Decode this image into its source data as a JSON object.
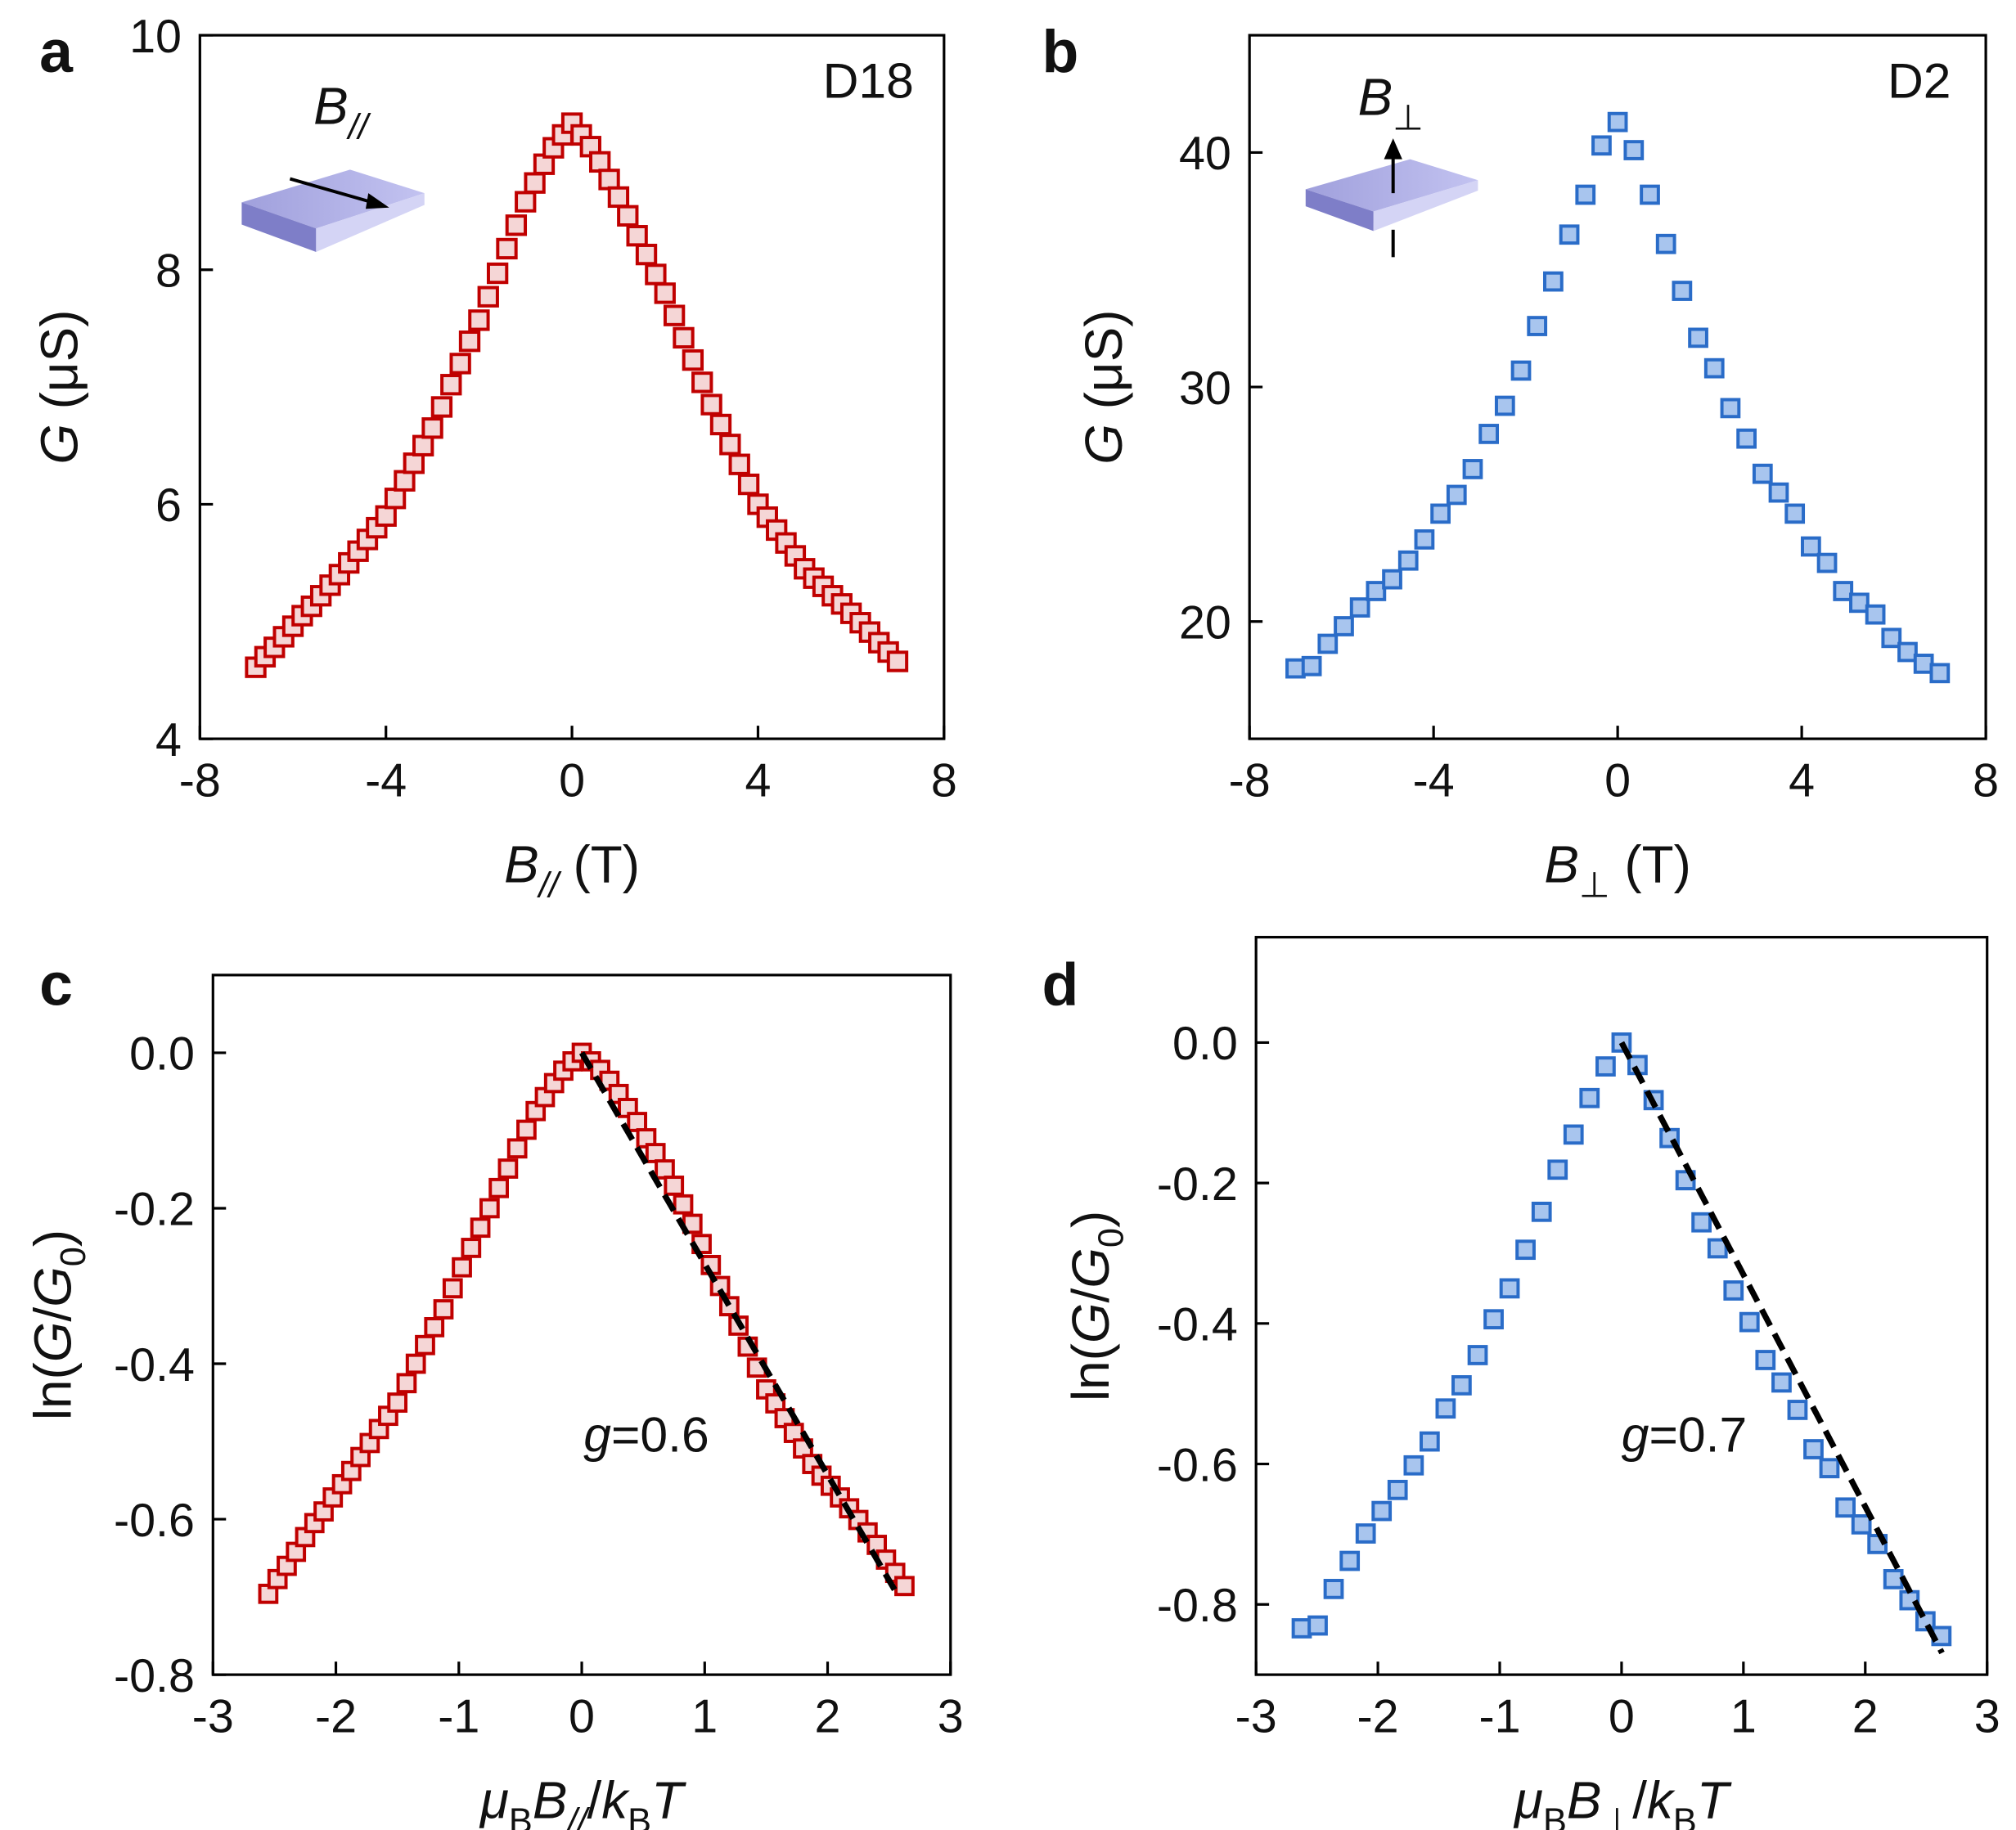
{
  "chart_data": [
    {
      "type": "scatter",
      "panel": "a",
      "annotation": "D18",
      "inset_label": [
        {
          "text": "B",
          "italic": true
        },
        {
          "text": "//",
          "italic": true,
          "sub": true
        }
      ],
      "xlabel": [
        {
          "text": "B",
          "italic": true
        },
        {
          "text": "//",
          "italic": true,
          "sub": true
        },
        {
          "text": " (T)"
        }
      ],
      "ylabel": [
        {
          "text": "G",
          "italic": true
        },
        {
          "text": " (μS)"
        }
      ],
      "xlim": [
        -8,
        8
      ],
      "xticks": [
        -8,
        -4,
        0,
        4,
        8
      ],
      "ylim": [
        4,
        10
      ],
      "yticks": [
        4,
        6,
        8,
        10
      ],
      "color": "#c00000",
      "fill": "#f5d6d6",
      "x": [
        -6.8,
        -6.6,
        -6.4,
        -6.2,
        -6.0,
        -5.8,
        -5.6,
        -5.4,
        -5.2,
        -5.0,
        -4.8,
        -4.6,
        -4.4,
        -4.2,
        -4.0,
        -3.8,
        -3.6,
        -3.4,
        -3.2,
        -3.0,
        -2.8,
        -2.6,
        -2.4,
        -2.2,
        -2.0,
        -1.8,
        -1.6,
        -1.4,
        -1.2,
        -1.0,
        -0.8,
        -0.6,
        -0.4,
        -0.2,
        0,
        0.2,
        0.4,
        0.6,
        0.8,
        1.0,
        1.2,
        1.4,
        1.6,
        1.8,
        2.0,
        2.2,
        2.4,
        2.6,
        2.8,
        3.0,
        3.2,
        3.4,
        3.6,
        3.8,
        4.0,
        4.2,
        4.4,
        4.6,
        4.8,
        5.0,
        5.2,
        5.4,
        5.6,
        5.8,
        6.0,
        6.2,
        6.4,
        6.6,
        6.8,
        7.0
      ],
      "values": [
        4.61,
        4.7,
        4.78,
        4.87,
        4.96,
        5.05,
        5.13,
        5.22,
        5.31,
        5.4,
        5.5,
        5.6,
        5.7,
        5.8,
        5.9,
        6.05,
        6.2,
        6.35,
        6.5,
        6.65,
        6.83,
        7.02,
        7.2,
        7.39,
        7.57,
        7.77,
        7.97,
        8.18,
        8.38,
        8.58,
        8.74,
        8.9,
        9.04,
        9.15,
        9.25,
        9.15,
        9.05,
        8.92,
        8.77,
        8.62,
        8.46,
        8.29,
        8.13,
        7.96,
        7.8,
        7.61,
        7.42,
        7.23,
        7.04,
        6.85,
        6.68,
        6.51,
        6.34,
        6.17,
        6.0,
        5.89,
        5.78,
        5.67,
        5.56,
        5.45,
        5.37,
        5.3,
        5.22,
        5.15,
        5.07,
        4.99,
        4.91,
        4.82,
        4.74,
        4.66
      ]
    },
    {
      "type": "scatter",
      "panel": "b",
      "annotation": "D2",
      "inset_label": [
        {
          "text": "B",
          "italic": true
        },
        {
          "text": "⊥",
          "sub": true
        }
      ],
      "xlabel": [
        {
          "text": "B",
          "italic": true
        },
        {
          "text": "⊥",
          "sub": true
        },
        {
          "text": " (T)"
        }
      ],
      "ylabel": [
        {
          "text": "G",
          "italic": true
        },
        {
          "text": " (μS)"
        }
      ],
      "xlim": [
        -8,
        8
      ],
      "xticks": [
        -8,
        -4,
        0,
        4,
        8
      ],
      "ylim": [
        15,
        45
      ],
      "yticks": [
        20,
        30,
        40
      ],
      "color": "#2a6cc8",
      "fill": "#a8c5ee",
      "x": [
        -7,
        -6.65,
        -6.3,
        -5.95,
        -5.6,
        -5.25,
        -4.9,
        -4.55,
        -4.2,
        -3.85,
        -3.5,
        -3.15,
        -2.8,
        -2.45,
        -2.1,
        -1.75,
        -1.4,
        -1.05,
        -0.7,
        -0.35,
        0,
        0.35,
        0.7,
        1.05,
        1.4,
        1.75,
        2.1,
        2.45,
        2.8,
        3.15,
        3.5,
        3.85,
        4.2,
        4.55,
        4.9,
        5.25,
        5.6,
        5.95,
        6.3,
        6.65,
        7
      ],
      "values": [
        18.0,
        18.1,
        19.05,
        19.8,
        20.6,
        21.3,
        21.8,
        22.6,
        23.5,
        24.6,
        25.4,
        26.5,
        28.0,
        29.2,
        30.7,
        32.6,
        34.5,
        36.5,
        38.2,
        40.3,
        41.3,
        40.1,
        38.2,
        36.1,
        34.1,
        32.1,
        30.8,
        29.1,
        27.8,
        26.3,
        25.5,
        24.6,
        23.2,
        22.5,
        21.3,
        20.8,
        20.3,
        19.3,
        18.7,
        18.2,
        17.8
      ]
    },
    {
      "type": "scatter",
      "panel": "c",
      "annotation": [
        {
          "text": "g",
          "italic": true
        },
        {
          "text": "=0.6"
        }
      ],
      "xlabel": [
        {
          "text": "μ",
          "italic": true
        },
        {
          "text": "B",
          "sub": true
        },
        {
          "text": "B",
          "italic": true
        },
        {
          "text": "//",
          "italic": true,
          "sub": true
        },
        {
          "text": "/"
        },
        {
          "text": "k",
          "italic": true
        },
        {
          "text": "B",
          "sub": true
        },
        {
          "text": "T",
          "italic": true
        }
      ],
      "ylabel": [
        {
          "text": "ln("
        },
        {
          "text": "G",
          "italic": true
        },
        {
          "text": "/"
        },
        {
          "text": "G",
          "italic": true
        },
        {
          "text": "0",
          "sub": true
        },
        {
          "text": ")"
        }
      ],
      "xlim": [
        -3,
        3
      ],
      "xticks": [
        -3,
        -2,
        -1,
        0,
        1,
        2,
        3
      ],
      "ylim": [
        -0.8,
        0.1
      ],
      "yticks": [
        -0.8,
        -0.6,
        -0.4,
        -0.2,
        {
          "value": 0,
          "label": "0.0"
        }
      ],
      "color": "#c00000",
      "fill": "#f5d6d6",
      "x": [
        -2.55,
        -2.475,
        -2.4,
        -2.325,
        -2.25,
        -2.175,
        -2.1,
        -2.025,
        -1.95,
        -1.875,
        -1.8,
        -1.725,
        -1.65,
        -1.575,
        -1.5,
        -1.425,
        -1.35,
        -1.275,
        -1.2,
        -1.125,
        -1.05,
        -0.975,
        -0.9,
        -0.825,
        -0.75,
        -0.675,
        -0.6,
        -0.525,
        -0.45,
        -0.375,
        -0.3,
        -0.225,
        -0.15,
        -0.075,
        0,
        0.075,
        0.15,
        0.225,
        0.3,
        0.375,
        0.45,
        0.525,
        0.6,
        0.675,
        0.75,
        0.825,
        0.9,
        0.975,
        1.05,
        1.125,
        1.2,
        1.275,
        1.35,
        1.425,
        1.5,
        1.575,
        1.65,
        1.725,
        1.8,
        1.875,
        1.95,
        2.025,
        2.1,
        2.175,
        2.25,
        2.325,
        2.4,
        2.475,
        2.55,
        2.625
      ],
      "values": [
        -0.696,
        -0.677,
        -0.66,
        -0.642,
        -0.623,
        -0.605,
        -0.59,
        -0.572,
        -0.555,
        -0.538,
        -0.52,
        -0.502,
        -0.484,
        -0.467,
        -0.45,
        -0.425,
        -0.4,
        -0.376,
        -0.353,
        -0.33,
        -0.303,
        -0.276,
        -0.251,
        -0.225,
        -0.2,
        -0.174,
        -0.149,
        -0.123,
        -0.099,
        -0.075,
        -0.057,
        -0.039,
        -0.023,
        -0.011,
        0,
        -0.011,
        -0.022,
        -0.036,
        -0.053,
        -0.071,
        -0.089,
        -0.11,
        -0.129,
        -0.15,
        -0.171,
        -0.195,
        -0.22,
        -0.246,
        -0.273,
        -0.3,
        -0.326,
        -0.351,
        -0.378,
        -0.405,
        -0.433,
        -0.451,
        -0.47,
        -0.489,
        -0.509,
        -0.529,
        -0.544,
        -0.557,
        -0.572,
        -0.586,
        -0.601,
        -0.617,
        -0.633,
        -0.652,
        -0.669,
        -0.686
      ],
      "fit": {
        "x": [
          0,
          2.56
        ],
        "values": [
          0,
          -0.695
        ],
        "color": "#000000"
      }
    },
    {
      "type": "scatter",
      "panel": "d",
      "annotation": [
        {
          "text": "g",
          "italic": true
        },
        {
          "text": "=0.7"
        }
      ],
      "xlabel": [
        {
          "text": "μ",
          "italic": true
        },
        {
          "text": "B",
          "sub": true
        },
        {
          "text": "B",
          "italic": true
        },
        {
          "text": "⊥",
          "sub": true
        },
        {
          "text": "/"
        },
        {
          "text": "k",
          "italic": true
        },
        {
          "text": "B",
          "sub": true
        },
        {
          "text": "T",
          "italic": true
        }
      ],
      "ylabel": [
        {
          "text": "ln("
        },
        {
          "text": "G",
          "italic": true
        },
        {
          "text": "/"
        },
        {
          "text": "G",
          "italic": true
        },
        {
          "text": "0",
          "sub": true
        },
        {
          "text": ")"
        }
      ],
      "xlim": [
        -3,
        3
      ],
      "xticks": [
        -3,
        -2,
        -1,
        0,
        1,
        2,
        3
      ],
      "ylim": [
        -0.9,
        0.15
      ],
      "yticks": [
        -0.8,
        -0.6,
        -0.4,
        -0.2,
        {
          "value": 0,
          "label": "0.0"
        }
      ],
      "color": "#2a6cc8",
      "fill": "#a8c5ee",
      "x": [
        -2.625,
        -2.494,
        -2.363,
        -2.231,
        -2.1,
        -1.969,
        -1.838,
        -1.706,
        -1.575,
        -1.444,
        -1.313,
        -1.181,
        -1.05,
        -0.919,
        -0.788,
        -0.656,
        -0.525,
        -0.394,
        -0.263,
        -0.131,
        0,
        0.131,
        0.263,
        0.394,
        0.525,
        0.656,
        0.788,
        0.919,
        1.05,
        1.181,
        1.313,
        1.444,
        1.575,
        1.706,
        1.838,
        1.969,
        2.1,
        2.231,
        2.363,
        2.494,
        2.625
      ],
      "values": [
        -0.834,
        -0.83,
        -0.778,
        -0.738,
        -0.699,
        -0.667,
        -0.637,
        -0.602,
        -0.568,
        -0.521,
        -0.488,
        -0.445,
        -0.394,
        -0.35,
        -0.295,
        -0.241,
        -0.181,
        -0.131,
        -0.079,
        -0.034,
        0,
        -0.032,
        -0.082,
        -0.136,
        -0.196,
        -0.256,
        -0.293,
        -0.353,
        -0.398,
        -0.452,
        -0.484,
        -0.523,
        -0.579,
        -0.606,
        -0.662,
        -0.686,
        -0.714,
        -0.764,
        -0.794,
        -0.824,
        -0.845
      ],
      "fit": {
        "x": [
          0,
          2.63
        ],
        "values": [
          0,
          -0.869
        ],
        "color": "#000000"
      }
    }
  ]
}
